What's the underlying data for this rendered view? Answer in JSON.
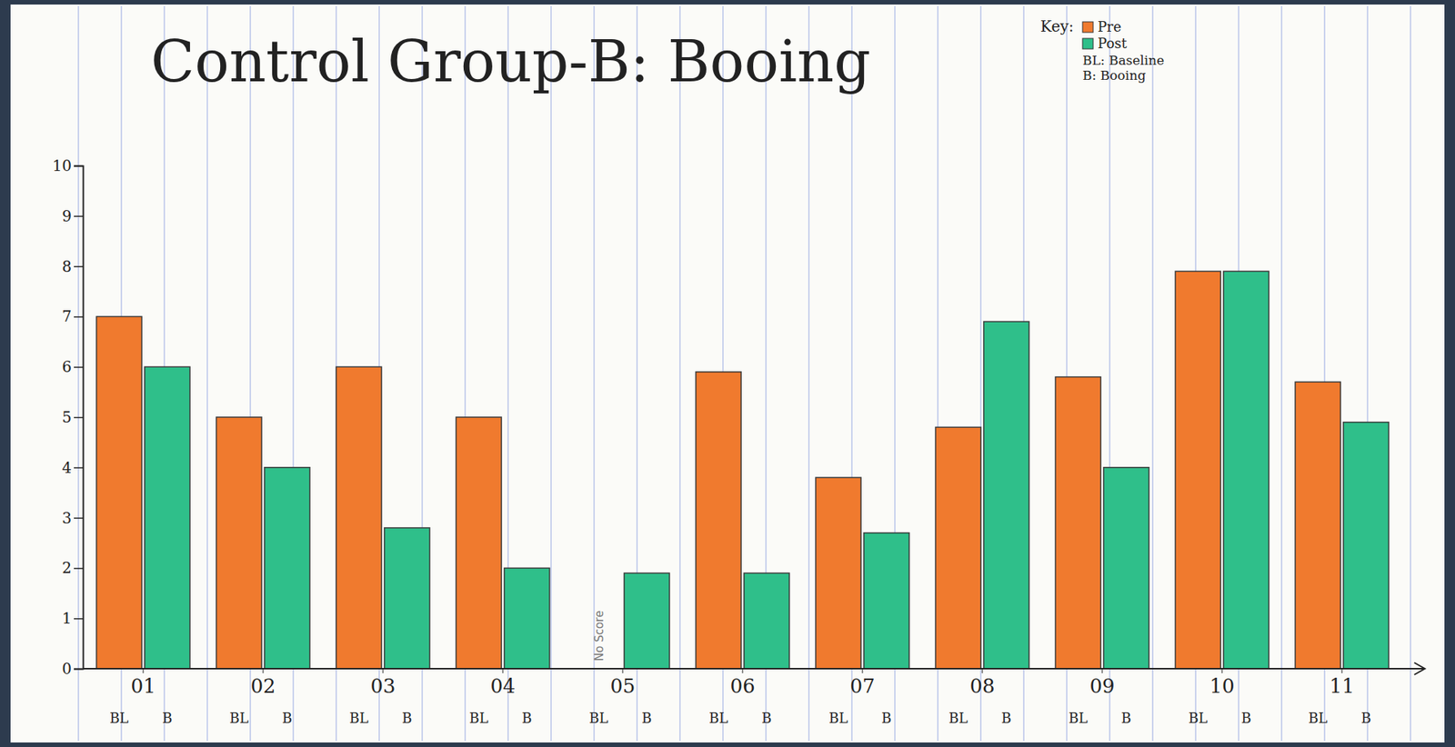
{
  "chart_data": {
    "type": "bar",
    "title": "Control Group-B: Booing",
    "categories": [
      "01",
      "02",
      "03",
      "04",
      "05",
      "06",
      "07",
      "08",
      "09",
      "10",
      "11"
    ],
    "series": [
      {
        "name": "Pre",
        "tag": "BL",
        "color": "#f07a2e",
        "values": [
          7,
          5,
          6,
          5,
          null,
          5.9,
          3.8,
          4.8,
          5.8,
          7.9,
          5.7
        ]
      },
      {
        "name": "Post",
        "tag": "B",
        "color": "#2fbf8a",
        "values": [
          6,
          4,
          2.8,
          2,
          1.9,
          1.9,
          2.7,
          6.9,
          4,
          7.9,
          4.9
        ]
      }
    ],
    "legend_title": "Key:",
    "legend_notes": [
      "BL: Baseline",
      "B: Booing"
    ],
    "annotations": [
      {
        "text": "No Score",
        "category": "05",
        "series": "Pre"
      }
    ],
    "ylim": [
      0,
      10
    ],
    "yticks": [
      0,
      1,
      2,
      3,
      4,
      5,
      6,
      7,
      8,
      9,
      10
    ],
    "grid": false,
    "legend": "top-right"
  }
}
